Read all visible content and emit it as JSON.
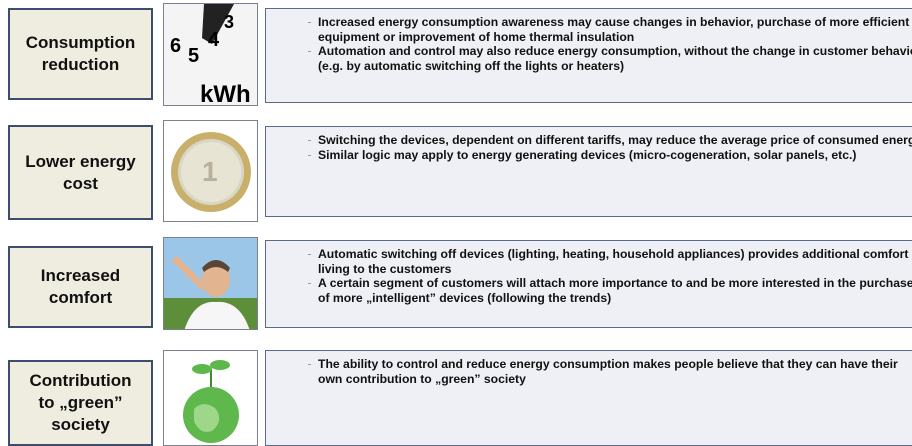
{
  "rows": [
    {
      "label": "Consumption reduction",
      "image_text": [
        "6",
        "5",
        "4",
        "3",
        "kWh"
      ],
      "bullets": [
        "Increased energy consumption awareness may cause changes in behavior, purchase of more efficient equipment or improvement of home thermal insulation",
        "Automation and control may also reduce energy consumption, without the change in customer behavior (e.g. by automatic switching off the lights or heaters)"
      ]
    },
    {
      "label": "Lower energy cost",
      "bullets": [
        "Switching the devices, dependent on different tariffs, may reduce the average price of consumed energy",
        "Similar logic may apply to energy generating devices (micro-cogeneration, solar panels, etc.)"
      ]
    },
    {
      "label": "Increased comfort",
      "bullets": [
        "Automatic switching off devices (lighting, heating, household appliances) provides additional comfort of living to the customers",
        "A certain segment of customers will attach more importance to and be more interested in the purchase of more „intelligent” devices (following the trends)"
      ]
    },
    {
      "label": "Contribution to „green” society",
      "bullets": [
        "The ability to control and reduce energy consumption makes people believe that they can have their own contribution to „green” society"
      ]
    }
  ]
}
